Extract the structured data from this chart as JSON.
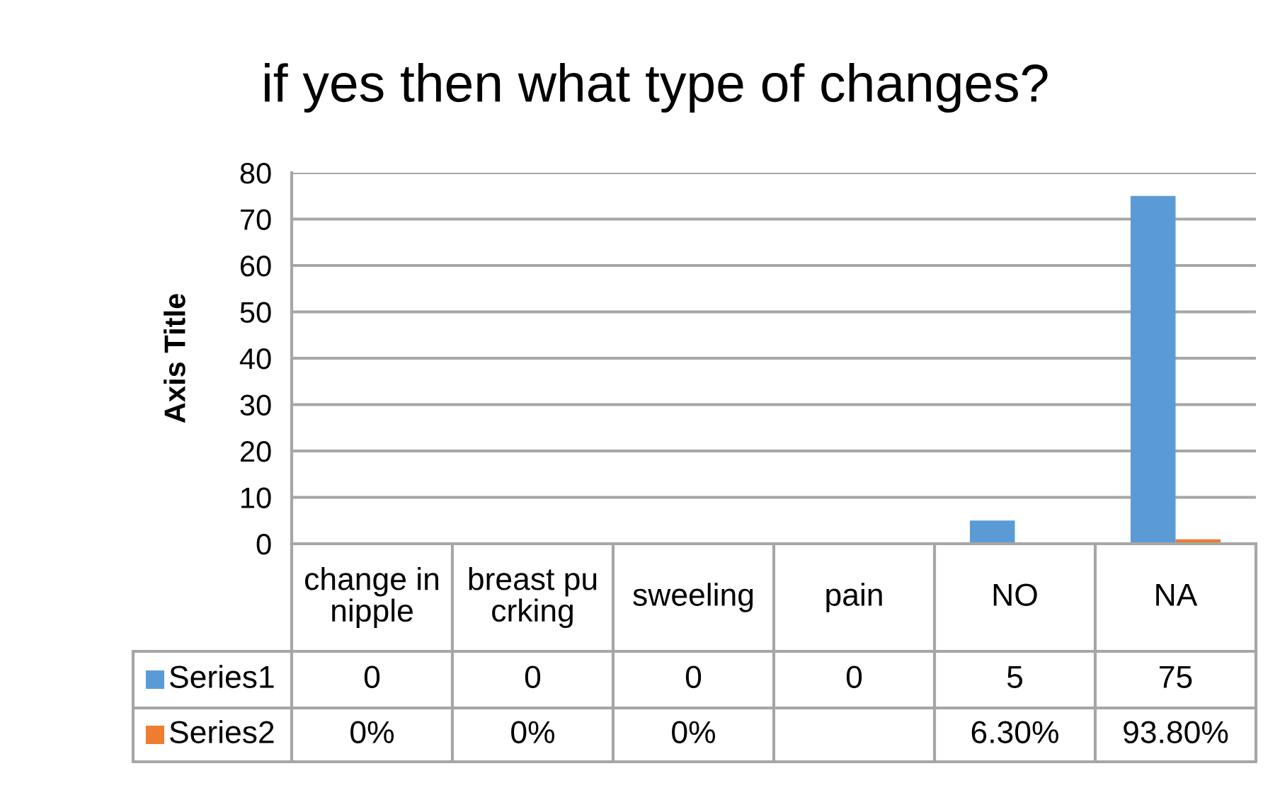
{
  "chart_data": {
    "type": "bar",
    "title": "if yes then what type of changes?",
    "ylabel": "Axis Title",
    "categories": [
      "change in\nnipple",
      "breast pu\ncrking",
      "sweeling",
      "pain",
      "NO",
      "NA"
    ],
    "series": [
      {
        "name": "Series1",
        "color": "#5b9bd5",
        "values": [
          0,
          0,
          0,
          0,
          5,
          75
        ],
        "value_labels": [
          "0",
          "0",
          "0",
          "0",
          "5",
          "75"
        ]
      },
      {
        "name": "Series2",
        "color": "#ed7d31",
        "values": [
          0,
          0,
          0,
          null,
          0.063,
          0.938
        ],
        "value_labels": [
          "0%",
          "0%",
          "0%",
          null,
          "6.30%",
          "93.80%"
        ]
      }
    ],
    "ylim": [
      0,
      80
    ],
    "yticks": [
      0,
      10,
      20,
      30,
      40,
      50,
      60,
      70,
      80
    ],
    "grid": "y",
    "legend": "bottom"
  }
}
